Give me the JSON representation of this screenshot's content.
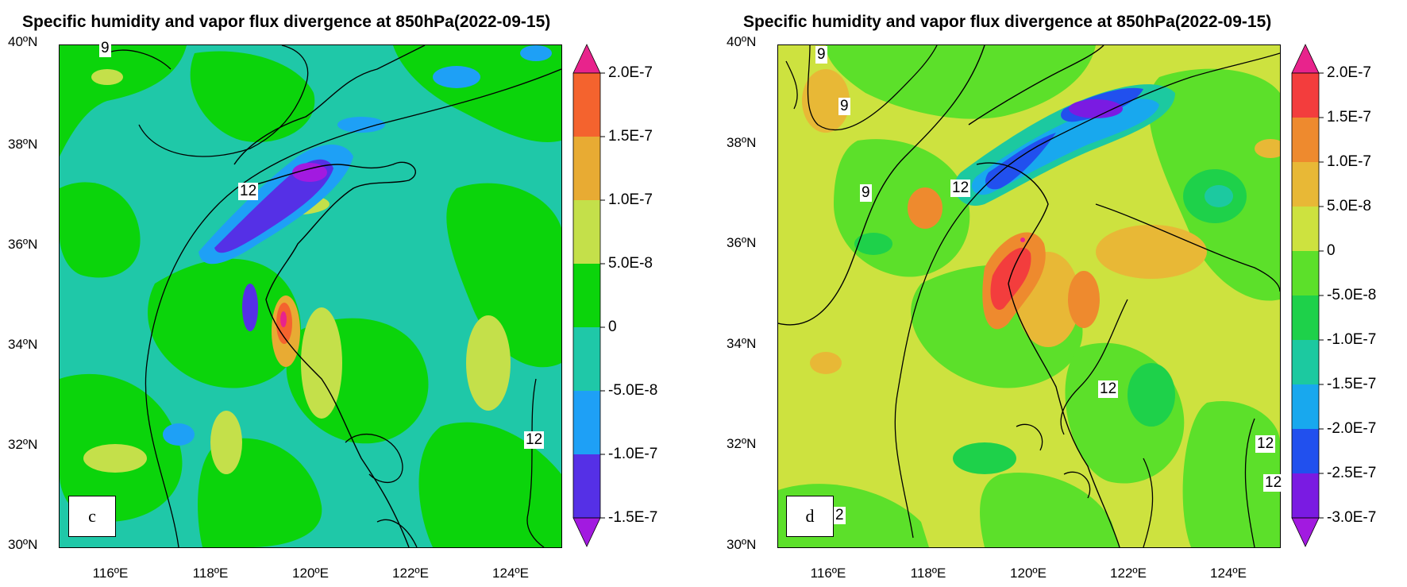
{
  "panels": [
    {
      "id": "c",
      "title": "Specific humidity and vapor flux divergence at 850hPa(2022-09-15)",
      "panel_letter": "c",
      "lat_labels": [
        "40ºN",
        "38ºN",
        "36ºN",
        "34ºN",
        "32ºN",
        "30ºN"
      ],
      "lon_labels": [
        "116ºE",
        "118ºE",
        "120ºE",
        "122ºE",
        "124ºE"
      ],
      "colorbar": {
        "labels": [
          "2.0E-7",
          "1.5E-7",
          "1.0E-7",
          "5.0E-8",
          "0",
          "-5.0E-8",
          "-1.0E-7",
          "-1.5E-7"
        ],
        "colors": [
          "#e8238c",
          "#f4632e",
          "#e8ab33",
          "#c4e04a",
          "#0bd40b",
          "#1fc8a8",
          "#1ea0f6",
          "#5530e6",
          "#a21ae0"
        ]
      },
      "contour_labels": [
        "9",
        "12",
        "12"
      ]
    },
    {
      "id": "d",
      "title": "Specific humidity and vapor flux divergence at 850hPa(2022-09-15)",
      "panel_letter": "d",
      "extra_box_text": "2",
      "lat_labels": [
        "40ºN",
        "38ºN",
        "36ºN",
        "34ºN",
        "32ºN",
        "30ºN"
      ],
      "lon_labels": [
        "116ºE",
        "118ºE",
        "120ºE",
        "122ºE",
        "124ºE"
      ],
      "colorbar": {
        "labels": [
          "2.0E-7",
          "1.5E-7",
          "1.0E-7",
          "5.0E-8",
          "0",
          "-5.0E-8",
          "-1.0E-7",
          "-1.5E-7",
          "-2.0E-7",
          "-2.5E-7",
          "-3.0E-7"
        ],
        "colors": [
          "#e8238c",
          "#f33d3d",
          "#ee8a2e",
          "#e8b836",
          "#cde23f",
          "#5ce02a",
          "#1ed14a",
          "#1cc9a0",
          "#18a8ee",
          "#2150ee",
          "#7a1be2",
          "#a21ae0"
        ]
      },
      "contour_labels": [
        "9",
        "9",
        "9",
        "12",
        "12",
        "12",
        "12"
      ]
    }
  ]
}
